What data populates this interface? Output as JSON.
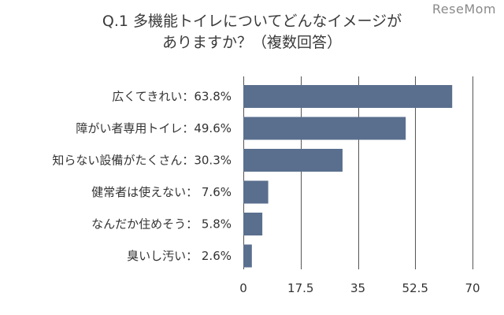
{
  "header": {
    "title_line1": "Q.1 多機能トイレについてどんなイメージが",
    "title_line2": "ありますか？（複数回答）",
    "watermark": "ReseMom"
  },
  "chart_data": {
    "type": "bar",
    "orientation": "horizontal",
    "categories": [
      "広くてきれい：63.8%",
      "障がい者専用トイレ：49.6%",
      "知らない設備がたくさん：30.3%",
      "健常者は使えない：  7.6%",
      "なんだか住めそう：  5.8%",
      "臭いし汚い：  2.6%"
    ],
    "values": [
      63.8,
      49.6,
      30.3,
      7.6,
      5.8,
      2.6
    ],
    "xlim": [
      0,
      70
    ],
    "xticks": [
      0,
      17.5,
      35,
      52.5,
      70
    ],
    "tick_labels": [
      "0",
      "17.5",
      "35",
      "52.5",
      "70"
    ],
    "bar_color": "#5a6f8e",
    "grid_color": "#555555",
    "grid": true
  }
}
